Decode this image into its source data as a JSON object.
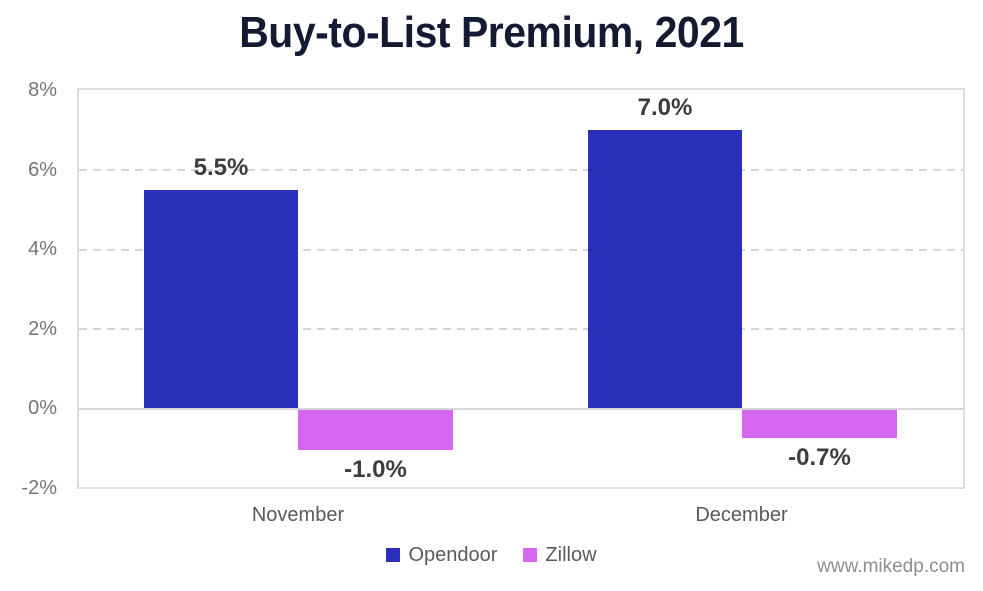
{
  "chart_data": {
    "type": "bar",
    "title": "Buy-to-List Premium, 2021",
    "categories": [
      "November",
      "December"
    ],
    "series": [
      {
        "name": "Opendoor",
        "color": "#2A30BC",
        "values": [
          5.5,
          7.0
        ],
        "value_labels": [
          "5.5%",
          "7.0%"
        ]
      },
      {
        "name": "Zillow",
        "color": "#D466F0",
        "values": [
          -1.0,
          -0.7
        ],
        "value_labels": [
          "-1.0%",
          "-0.7%"
        ]
      }
    ],
    "ylim": [
      -2,
      8
    ],
    "y_ticks": [
      "8%",
      "6%",
      "4%",
      "2%",
      "0%",
      "-2%"
    ],
    "xlabel": "",
    "ylabel": "",
    "grid": "horizontal-dashed",
    "legend_position": "bottom"
  },
  "watermark": "www.mikedp.com",
  "colors": {
    "opendoor": "#2A30BC",
    "zillow": "#D466F0",
    "title": "#151A33",
    "value_label": "#3D3D3D",
    "axis_text": "#757575",
    "category_text": "#5A5A5A",
    "legend_text": "#5A5A5A",
    "gridline": "#D6D6D6",
    "plot_border": "#DDDDDD",
    "watermark": "#8E8E8E"
  }
}
